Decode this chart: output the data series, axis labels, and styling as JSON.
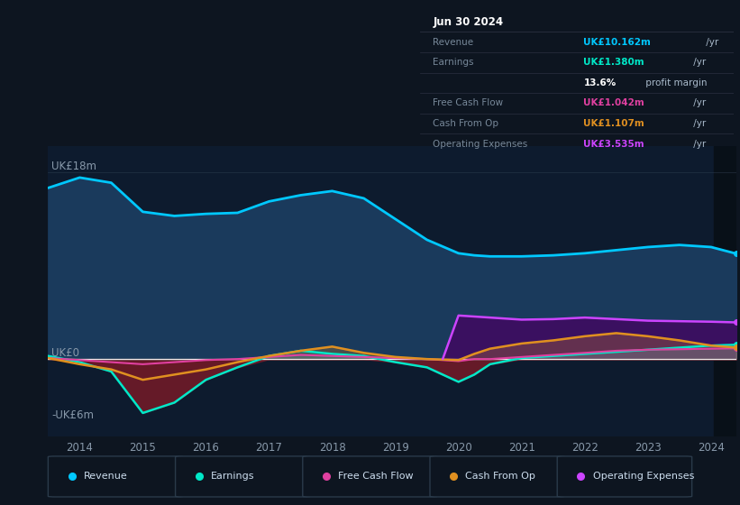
{
  "bg_color": "#0d1520",
  "plot_bg_color": "#0d1b2e",
  "years_x": [
    2013.5,
    2014.0,
    2014.5,
    2015.0,
    2015.5,
    2016.0,
    2016.5,
    2017.0,
    2017.5,
    2018.0,
    2018.5,
    2019.0,
    2019.5,
    2020.0,
    2020.25,
    2020.5,
    2021.0,
    2021.5,
    2022.0,
    2022.5,
    2023.0,
    2023.5,
    2024.0,
    2024.4
  ],
  "revenue": [
    16.5,
    17.5,
    17.0,
    14.2,
    13.8,
    14.0,
    14.1,
    15.2,
    15.8,
    16.2,
    15.5,
    13.5,
    11.5,
    10.2,
    10.0,
    9.9,
    9.9,
    10.0,
    10.2,
    10.5,
    10.8,
    11.0,
    10.8,
    10.162
  ],
  "earnings": [
    0.3,
    -0.3,
    -1.2,
    -5.2,
    -4.2,
    -2.0,
    -0.8,
    0.3,
    0.8,
    0.5,
    0.3,
    -0.3,
    -0.8,
    -2.2,
    -1.5,
    -0.5,
    0.1,
    0.3,
    0.5,
    0.7,
    0.9,
    1.1,
    1.3,
    1.38
  ],
  "free_cash_flow": [
    0.1,
    -0.1,
    -0.3,
    -0.5,
    -0.3,
    -0.1,
    0.0,
    0.2,
    0.4,
    0.3,
    0.2,
    0.1,
    0.0,
    -0.2,
    0.0,
    0.0,
    0.2,
    0.4,
    0.6,
    0.8,
    0.9,
    0.95,
    1.0,
    1.042
  ],
  "cash_from_op": [
    0.1,
    -0.5,
    -1.0,
    -2.0,
    -1.5,
    -1.0,
    -0.3,
    0.3,
    0.8,
    1.2,
    0.6,
    0.2,
    0.0,
    -0.1,
    0.5,
    1.0,
    1.5,
    1.8,
    2.2,
    2.5,
    2.2,
    1.8,
    1.3,
    1.107
  ],
  "opex_x": [
    2019.75,
    2020.0,
    2020.5,
    2021.0,
    2021.5,
    2022.0,
    2022.5,
    2023.0,
    2023.5,
    2024.0,
    2024.4
  ],
  "opex_y": [
    0.0,
    4.2,
    4.0,
    3.8,
    3.85,
    4.0,
    3.85,
    3.7,
    3.65,
    3.6,
    3.535
  ],
  "ylim_min": -7.5,
  "ylim_max": 20.5,
  "xticks": [
    2014,
    2015,
    2016,
    2017,
    2018,
    2019,
    2020,
    2021,
    2022,
    2023,
    2024
  ],
  "revenue_color": "#00c8ff",
  "revenue_fill": "#1a3a5c",
  "earnings_color": "#00e8c8",
  "earnings_fill_neg": "#6b1a28",
  "fcf_color": "#e040a0",
  "cashop_color": "#e09020",
  "opex_color": "#cc44ff",
  "opex_fill": "#3a1060",
  "darkened_right_bg": "#081018",
  "legend_items": [
    "Revenue",
    "Earnings",
    "Free Cash Flow",
    "Cash From Op",
    "Operating Expenses"
  ],
  "legend_colors": [
    "#00c8ff",
    "#00e8c8",
    "#e040a0",
    "#e09020",
    "#cc44ff"
  ],
  "table_title": "Jun 30 2024",
  "table_rows": [
    {
      "label": "Revenue",
      "value": "UK£10.162m",
      "value_color": "#00c8ff",
      "suffix": " /yr"
    },
    {
      "label": "Earnings",
      "value": "UK£1.380m",
      "value_color": "#00e8c8",
      "suffix": " /yr"
    },
    {
      "label": "",
      "value": "13.6%",
      "value_color": "#ffffff",
      "suffix": " profit margin"
    },
    {
      "label": "Free Cash Flow",
      "value": "UK£1.042m",
      "value_color": "#e040a0",
      "suffix": " /yr"
    },
    {
      "label": "Cash From Op",
      "value": "UK£1.107m",
      "value_color": "#e09020",
      "suffix": " /yr"
    },
    {
      "label": "Operating Expenses",
      "value": "UK£3.535m",
      "value_color": "#cc44ff",
      "suffix": " /yr"
    }
  ]
}
